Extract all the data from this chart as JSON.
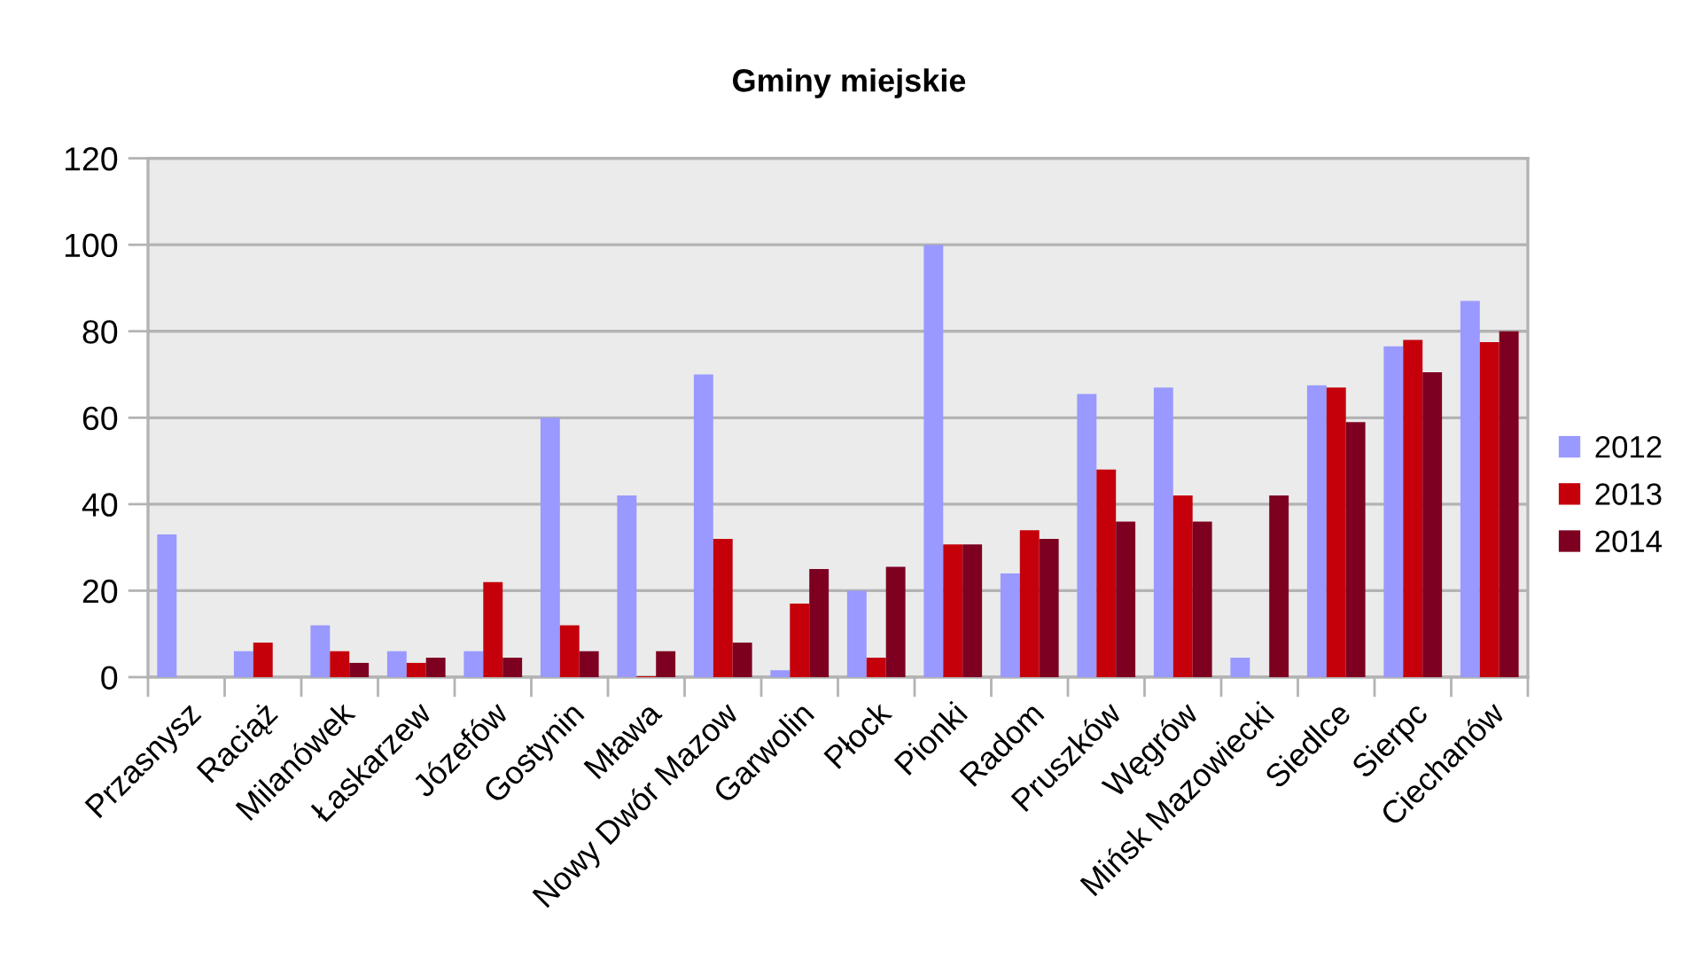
{
  "chart_data": {
    "type": "bar",
    "title": "Gminy miejskie",
    "categories": [
      "Przasnysz",
      "Raciąż",
      "Milanówek",
      "Łaskarzew",
      "Józefów",
      "Gostynin",
      "Mława",
      "Nowy Dwór Mazow",
      "Garwolin",
      "Płock",
      "Pionki",
      "Radom",
      "Pruszków",
      "Węgrów",
      "Mińsk Mazowiecki",
      "Siedlce",
      "Sierpc",
      "Ciechanów"
    ],
    "series": [
      {
        "name": "2012",
        "color": "#9999ff",
        "values": [
          33,
          6,
          12,
          6,
          6,
          60,
          42,
          70,
          1.6,
          20,
          100,
          24,
          65.5,
          67,
          4.5,
          67.5,
          76.5,
          87
        ]
      },
      {
        "name": "2013",
        "color": "#c5000b",
        "values": [
          null,
          8,
          6,
          3.3,
          22,
          12,
          0.2,
          32,
          17,
          4.5,
          30.7,
          34,
          48,
          42,
          null,
          67,
          78,
          77.5
        ]
      },
      {
        "name": "2014",
        "color": "#7e0021",
        "values": [
          null,
          null,
          3.3,
          4.5,
          4.5,
          6,
          6,
          8,
          25,
          25.5,
          30.7,
          32,
          36,
          36,
          42,
          59,
          70.5,
          80
        ]
      }
    ],
    "ylim": [
      0,
      120
    ],
    "yticks": [
      0,
      20,
      40,
      60,
      80,
      100,
      120
    ],
    "grid": "y",
    "legend": "right"
  }
}
